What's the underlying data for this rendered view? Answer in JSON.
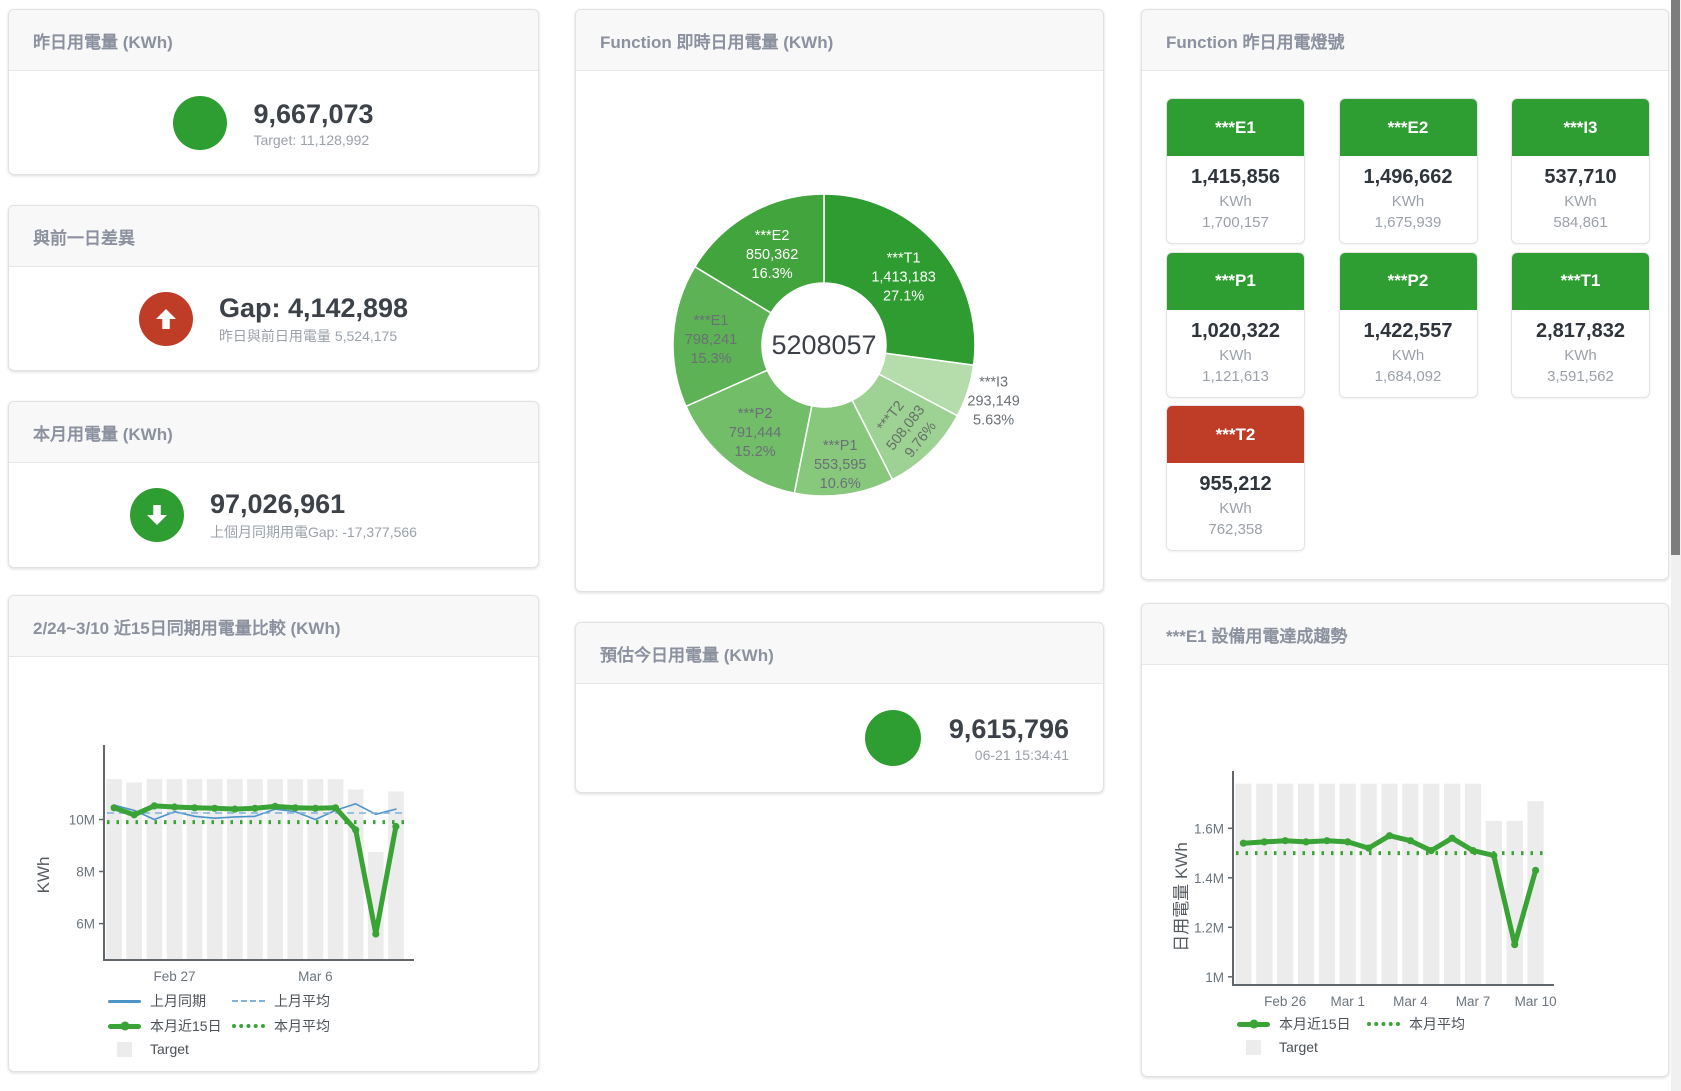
{
  "colors": {
    "green": "#2f9e32",
    "red": "#bf3c26",
    "bar_gray": "#ececec",
    "blue_line": "#4e94c9",
    "blue_dashed": "#7fb2dc",
    "green_line": "#3aa335",
    "card_title_gray": "#8b919e"
  },
  "cards": {
    "yesterday": {
      "title": "昨日用電量 (KWh)",
      "value": "9,667,073",
      "sub": "Target: 11,128,992"
    },
    "prev_gap": {
      "title": "與前一日差異",
      "value": "Gap: 4,142,898",
      "sub": "昨日與前日用電量 5,524,175"
    },
    "month": {
      "title": "本月用電量 (KWh)",
      "value": "97,026,961",
      "sub": "上個月同期用電Gap: -17,377,566"
    },
    "compare15": {
      "title": "2/24~3/10 近15日同期用電量比較 (KWh)"
    },
    "realtime": {
      "title": "Function 即時日用電量 (KWh)"
    },
    "estimate": {
      "title": "預估今日用電量 (KWh)",
      "value": "9,615,796",
      "sub": "06-21 15:34:41"
    },
    "lights": {
      "title": "Function 昨日用電燈號",
      "unit": "KWh",
      "tiles": [
        {
          "name": "***E1",
          "value": 1415856,
          "target": 1700157,
          "status": "green"
        },
        {
          "name": "***E2",
          "value": 1496662,
          "target": 1675939,
          "status": "green"
        },
        {
          "name": "***I3",
          "value": 537710,
          "target": 584861,
          "status": "green"
        },
        {
          "name": "***P1",
          "value": 1020322,
          "target": 1121613,
          "status": "green"
        },
        {
          "name": "***P2",
          "value": 1422557,
          "target": 1684092,
          "status": "green"
        },
        {
          "name": "***T1",
          "value": 2817832,
          "target": 3591562,
          "status": "green"
        },
        {
          "name": "***T2",
          "value": 955212,
          "target": 762358,
          "status": "red"
        }
      ]
    },
    "e1_trend": {
      "title": "***E1 設備用電達成趨勢"
    }
  },
  "chart_data": [
    {
      "type": "pie",
      "title": "Function 即時日用電量 (KWh)",
      "center_label": "5208057",
      "slices": [
        {
          "label": "***T1",
          "value": 1413183,
          "pct": "27.1%",
          "color": "#2e9c31"
        },
        {
          "label": "***I3",
          "value": 293149,
          "pct": "5.63%",
          "color": "#b5dcab"
        },
        {
          "label": "***T2",
          "value": 508083,
          "pct": "9.76%",
          "color": "#9ed295"
        },
        {
          "label": "***P1",
          "value": 553595,
          "pct": "10.6%",
          "color": "#88c87d"
        },
        {
          "label": "***P2",
          "value": 791444,
          "pct": "15.2%",
          "color": "#72bd68"
        },
        {
          "label": "***E1",
          "value": 798241,
          "pct": "15.3%",
          "color": "#5cb254"
        },
        {
          "label": "***E2",
          "value": 850362,
          "pct": "16.3%",
          "color": "#42a43c"
        }
      ]
    },
    {
      "type": "bar+line",
      "title": "2/24~3/10 近15日同期用電量比較 (KWh)",
      "ylabel": "KWh",
      "categories": [
        "2/24",
        "2/25",
        "2/26",
        "2/27",
        "2/28",
        "3/1",
        "3/2",
        "3/3",
        "3/4",
        "3/5",
        "3/6",
        "3/7",
        "3/8",
        "3/9",
        "3/10"
      ],
      "x_tick_labels": [
        {
          "index": 3,
          "label": "Feb 27"
        },
        {
          "index": 10,
          "label": "Mar 6"
        }
      ],
      "y_ticks": [
        {
          "label": "6M",
          "value": 6000000
        },
        {
          "label": "8M",
          "value": 8000000
        },
        {
          "label": "10M",
          "value": 10000000
        }
      ],
      "ylim": [
        4600000,
        12400000
      ],
      "bars": {
        "name": "Target",
        "color": "#ececec",
        "values": [
          11550000,
          11420000,
          11550000,
          11550000,
          11550000,
          11550000,
          11550000,
          11550000,
          11550000,
          11550000,
          11550000,
          11550000,
          11150000,
          8750000,
          11080000
        ]
      },
      "series": [
        {
          "name": "上月同期",
          "type": "line",
          "color": "#4e94c9",
          "width": 1.6,
          "values": [
            10550000,
            10350000,
            10000000,
            10300000,
            10120000,
            10050000,
            10100000,
            10120000,
            10400000,
            10300000,
            10000000,
            10350000,
            10600000,
            10200000,
            10400000
          ]
        },
        {
          "name": "上月平均",
          "type": "dashed",
          "color": "#7fb2dc",
          "width": 1.6,
          "value": 10250000
        },
        {
          "name": "本月平均",
          "type": "dotted",
          "color": "#3aa335",
          "width": 4,
          "value": 9900000
        },
        {
          "name": "本月近15日",
          "type": "line",
          "color": "#3aa335",
          "width": 5,
          "values": [
            10450000,
            10180000,
            10520000,
            10480000,
            10450000,
            10430000,
            10400000,
            10430000,
            10500000,
            10450000,
            10430000,
            10450000,
            9600000,
            5600000,
            9730000
          ]
        }
      ],
      "legend_rows": [
        [
          "上月同期",
          "上月平均"
        ],
        [
          "本月近15日",
          "本月平均"
        ],
        [
          "Target"
        ]
      ]
    },
    {
      "type": "bar+line",
      "title": "***E1 設備用電達成趨勢",
      "ylabel": "日用電量 KWh",
      "categories": [
        "2/24",
        "2/25",
        "2/26",
        "2/27",
        "2/28",
        "3/1",
        "3/2",
        "3/3",
        "3/4",
        "3/5",
        "3/6",
        "3/7",
        "3/8",
        "3/9",
        "3/10"
      ],
      "x_tick_labels": [
        {
          "index": 2,
          "label": "Feb 26"
        },
        {
          "index": 5,
          "label": "Mar 1"
        },
        {
          "index": 8,
          "label": "Mar 4"
        },
        {
          "index": 11,
          "label": "Mar 7"
        },
        {
          "index": 14,
          "label": "Mar 10"
        }
      ],
      "y_ticks": [
        {
          "label": "1M",
          "value": 1000000
        },
        {
          "label": "1.2M",
          "value": 1200000
        },
        {
          "label": "1.4M",
          "value": 1400000
        },
        {
          "label": "1.6M",
          "value": 1600000
        }
      ],
      "ylim": [
        967000,
        1783000
      ],
      "bars": {
        "name": "Target",
        "color": "#ececec",
        "values": [
          1780000,
          1780000,
          1780000,
          1780000,
          1780000,
          1780000,
          1780000,
          1780000,
          1780000,
          1780000,
          1780000,
          1780000,
          1630000,
          1630000,
          1710000
        ]
      },
      "series": [
        {
          "name": "本月平均",
          "type": "dotted",
          "color": "#3aa335",
          "width": 4,
          "value": 1500000
        },
        {
          "name": "本月近15日",
          "type": "line",
          "color": "#3aa335",
          "width": 5,
          "values": [
            1540000,
            1545000,
            1550000,
            1545000,
            1550000,
            1545000,
            1520000,
            1570000,
            1550000,
            1510000,
            1560000,
            1510000,
            1490000,
            1130000,
            1430000
          ]
        }
      ],
      "legend_rows": [
        [
          "本月近15日",
          "本月平均"
        ],
        [
          "Target"
        ]
      ]
    }
  ]
}
